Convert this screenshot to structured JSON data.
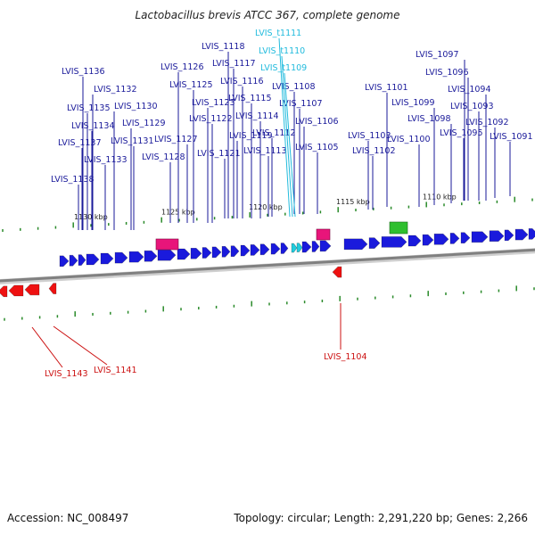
{
  "title": "Lactobacillus brevis ATCC 367, complete genome",
  "footer": {
    "accession": "Accession: NC_008497",
    "summary": "Topology: circular; Length: 2,291,220 bp; Genes: 2,266"
  },
  "colors": {
    "gene_plus": "#1a1adc",
    "gene_minus": "#ee1111",
    "trna": "#22ccdd",
    "rrna_like": "#e8157a",
    "other_feature": "#2fbf2f",
    "label_plus": "#1a1a9a",
    "label_minus": "#cc1111",
    "label_trna": "#22bbdd",
    "backbone": "#808080",
    "tick": "#2a8a2a"
  },
  "ruler_labels": [
    "1130 kbp",
    "1125 kbp",
    "1120 kbp",
    "1115 kbp",
    "1110 kbp"
  ],
  "gene_labels_top": [
    "LVIS_1136",
    "LVIS_1132",
    "LVIS_1135",
    "LVIS_1130",
    "LVIS_1134",
    "LVIS_1129",
    "LVIS_1137",
    "LVIS_1131",
    "LVIS_1133",
    "LVIS_1138",
    "LVIS_1126",
    "LVIS_1125",
    "LVIS_1123",
    "LVIS_1122",
    "LVIS_1127",
    "LVIS_1128",
    "LVIS_1118",
    "LVIS_1117",
    "LVIS_1116",
    "LVIS_1115",
    "LVIS_1114",
    "LVIS_1119",
    "LVIS_1121",
    "LVIS_1112",
    "LVIS_1113",
    "LVIS_1108",
    "LVIS_1107",
    "LVIS_1106",
    "LVIS_1105",
    "LVIS_1103",
    "LVIS_1102",
    "LVIS_1101",
    "LVIS_1100",
    "LVIS_1099",
    "LVIS_1098",
    "LVIS_1097",
    "LVIS_1096",
    "LVIS_1094",
    "LVIS_1093",
    "LVIS_1095",
    "LVIS_1092",
    "LVIS_1091"
  ],
  "trna_labels": [
    "LVIS_t1111",
    "LVIS_t1110",
    "LVIS_t1109"
  ],
  "gene_labels_bottom": [
    "LVIS_1143",
    "LVIS_1141",
    "LVIS_1104"
  ]
}
